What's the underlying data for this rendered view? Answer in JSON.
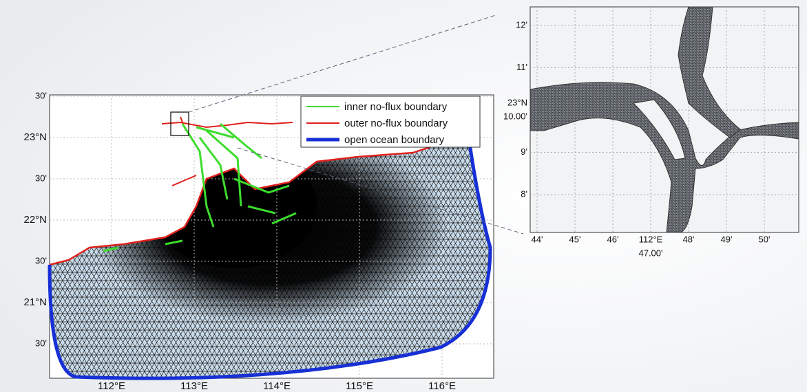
{
  "map": {
    "y_labels": [
      "30'",
      "23°N",
      "30'",
      "22°N",
      "30'",
      "21°N",
      "30'"
    ],
    "x_labels": [
      "112°E",
      "113°E",
      "114°E",
      "115°E",
      "116°E"
    ],
    "legend": [
      "inner no-flux boundary",
      "outer no-flux boundary",
      "open ocean boundary"
    ]
  },
  "inset": {
    "y_labels": [
      [
        "12'"
      ],
      [
        "11'"
      ],
      [
        "23°N",
        "10.00'"
      ],
      [
        "9'"
      ],
      [
        "8'"
      ]
    ],
    "x_labels": [
      [
        "44'"
      ],
      [
        "45'"
      ],
      [
        "46'"
      ],
      [
        "112°E",
        "47.00'"
      ],
      [
        "48'"
      ],
      [
        "49'"
      ],
      [
        "50'"
      ]
    ]
  }
}
